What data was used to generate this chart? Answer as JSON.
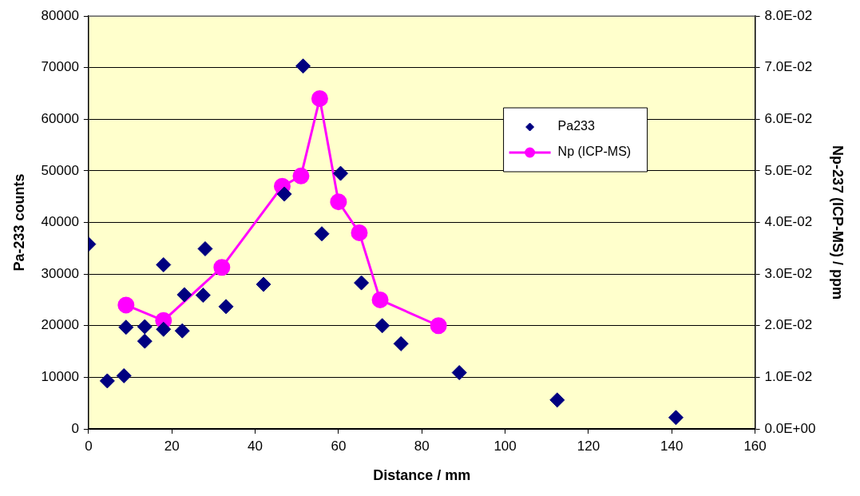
{
  "chart_data": {
    "type": "scatter",
    "xlabel": "Distance / mm",
    "ylabel": "Pa-233 counts",
    "y2label": "Np-237 (ICP-MS) / ppm",
    "xlim": [
      0,
      160
    ],
    "xticks": [
      0,
      20,
      40,
      60,
      80,
      100,
      120,
      140,
      160
    ],
    "ylim": [
      0,
      80000
    ],
    "yticks": [
      0,
      10000,
      20000,
      30000,
      40000,
      50000,
      60000,
      70000,
      80000
    ],
    "y2lim": [
      0,
      0.08
    ],
    "y2ticks": [
      {
        "value": 0,
        "label": "0.0E+00"
      },
      {
        "value": 0.01,
        "label": "1.0E-02"
      },
      {
        "value": 0.02,
        "label": "2.0E-02"
      },
      {
        "value": 0.03,
        "label": "3.0E-02"
      },
      {
        "value": 0.04,
        "label": "4.0E-02"
      },
      {
        "value": 0.05,
        "label": "5.0E-02"
      },
      {
        "value": 0.06,
        "label": "6.0E-02"
      },
      {
        "value": 0.07,
        "label": "7.0E-02"
      },
      {
        "value": 0.08,
        "label": "8.0E-02"
      }
    ],
    "grid": "y",
    "legend": "top right",
    "series": [
      {
        "name": "Pa233",
        "marker": "diamond",
        "color": "#000080",
        "x": [
          0,
          4.5,
          8.5,
          9,
          13.5,
          13.5,
          18,
          18,
          22.5,
          23,
          27.5,
          28,
          33,
          42,
          47,
          51.5,
          56,
          60.5,
          65.5,
          70.5,
          75,
          89,
          112.5,
          141
        ],
        "values": [
          35800,
          9300,
          10300,
          19700,
          19800,
          17000,
          31800,
          19300,
          19000,
          26000,
          25900,
          34900,
          23700,
          28000,
          45500,
          70300,
          37800,
          49500,
          28300,
          20000,
          16500,
          10900,
          5600,
          2200
        ]
      },
      {
        "name": "Np (ICP-MS)",
        "type": "line",
        "marker": "circle",
        "line_style": "solid",
        "axis": "y2",
        "color": "#ff00ff",
        "x": [
          9,
          18,
          32,
          46.5,
          51,
          55.5,
          60,
          65,
          70,
          84
        ],
        "values": [
          0.024,
          0.021,
          0.0313,
          0.047,
          0.049,
          0.064,
          0.044,
          0.038,
          0.025,
          0.02
        ]
      }
    ]
  }
}
